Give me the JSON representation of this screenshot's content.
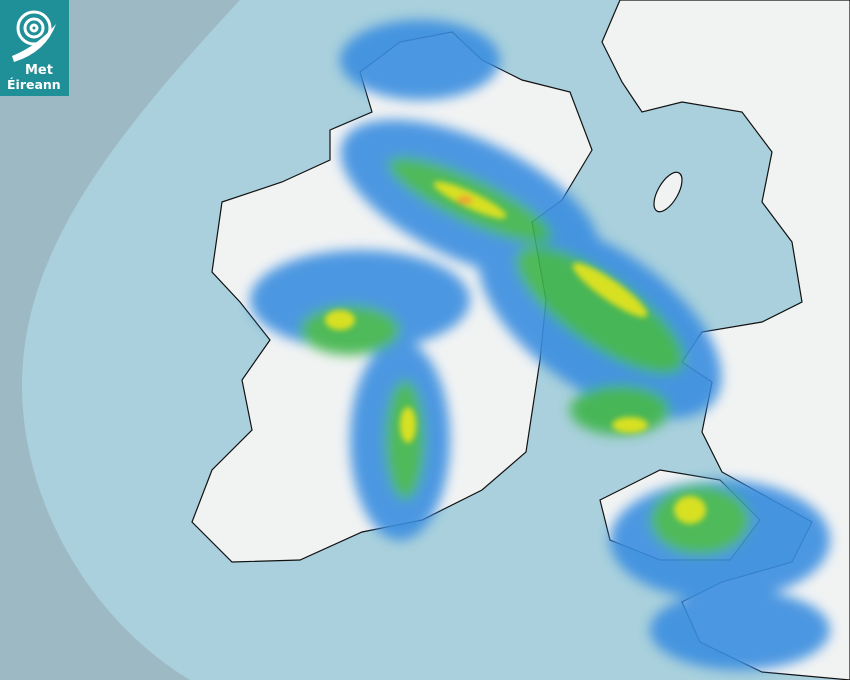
{
  "logo": {
    "line1": "Met",
    "line2": "Éireann",
    "color": "#1f8f98"
  },
  "colors": {
    "outside_range": "#9db9c4",
    "sea": "#a9d0dc",
    "land": "#f2f4f4",
    "rain_light": "#3a8ee0",
    "rain_moderate": "#3cb44a",
    "rain_heavy": "#d8e020",
    "rain_intense": "#f0a030"
  }
}
